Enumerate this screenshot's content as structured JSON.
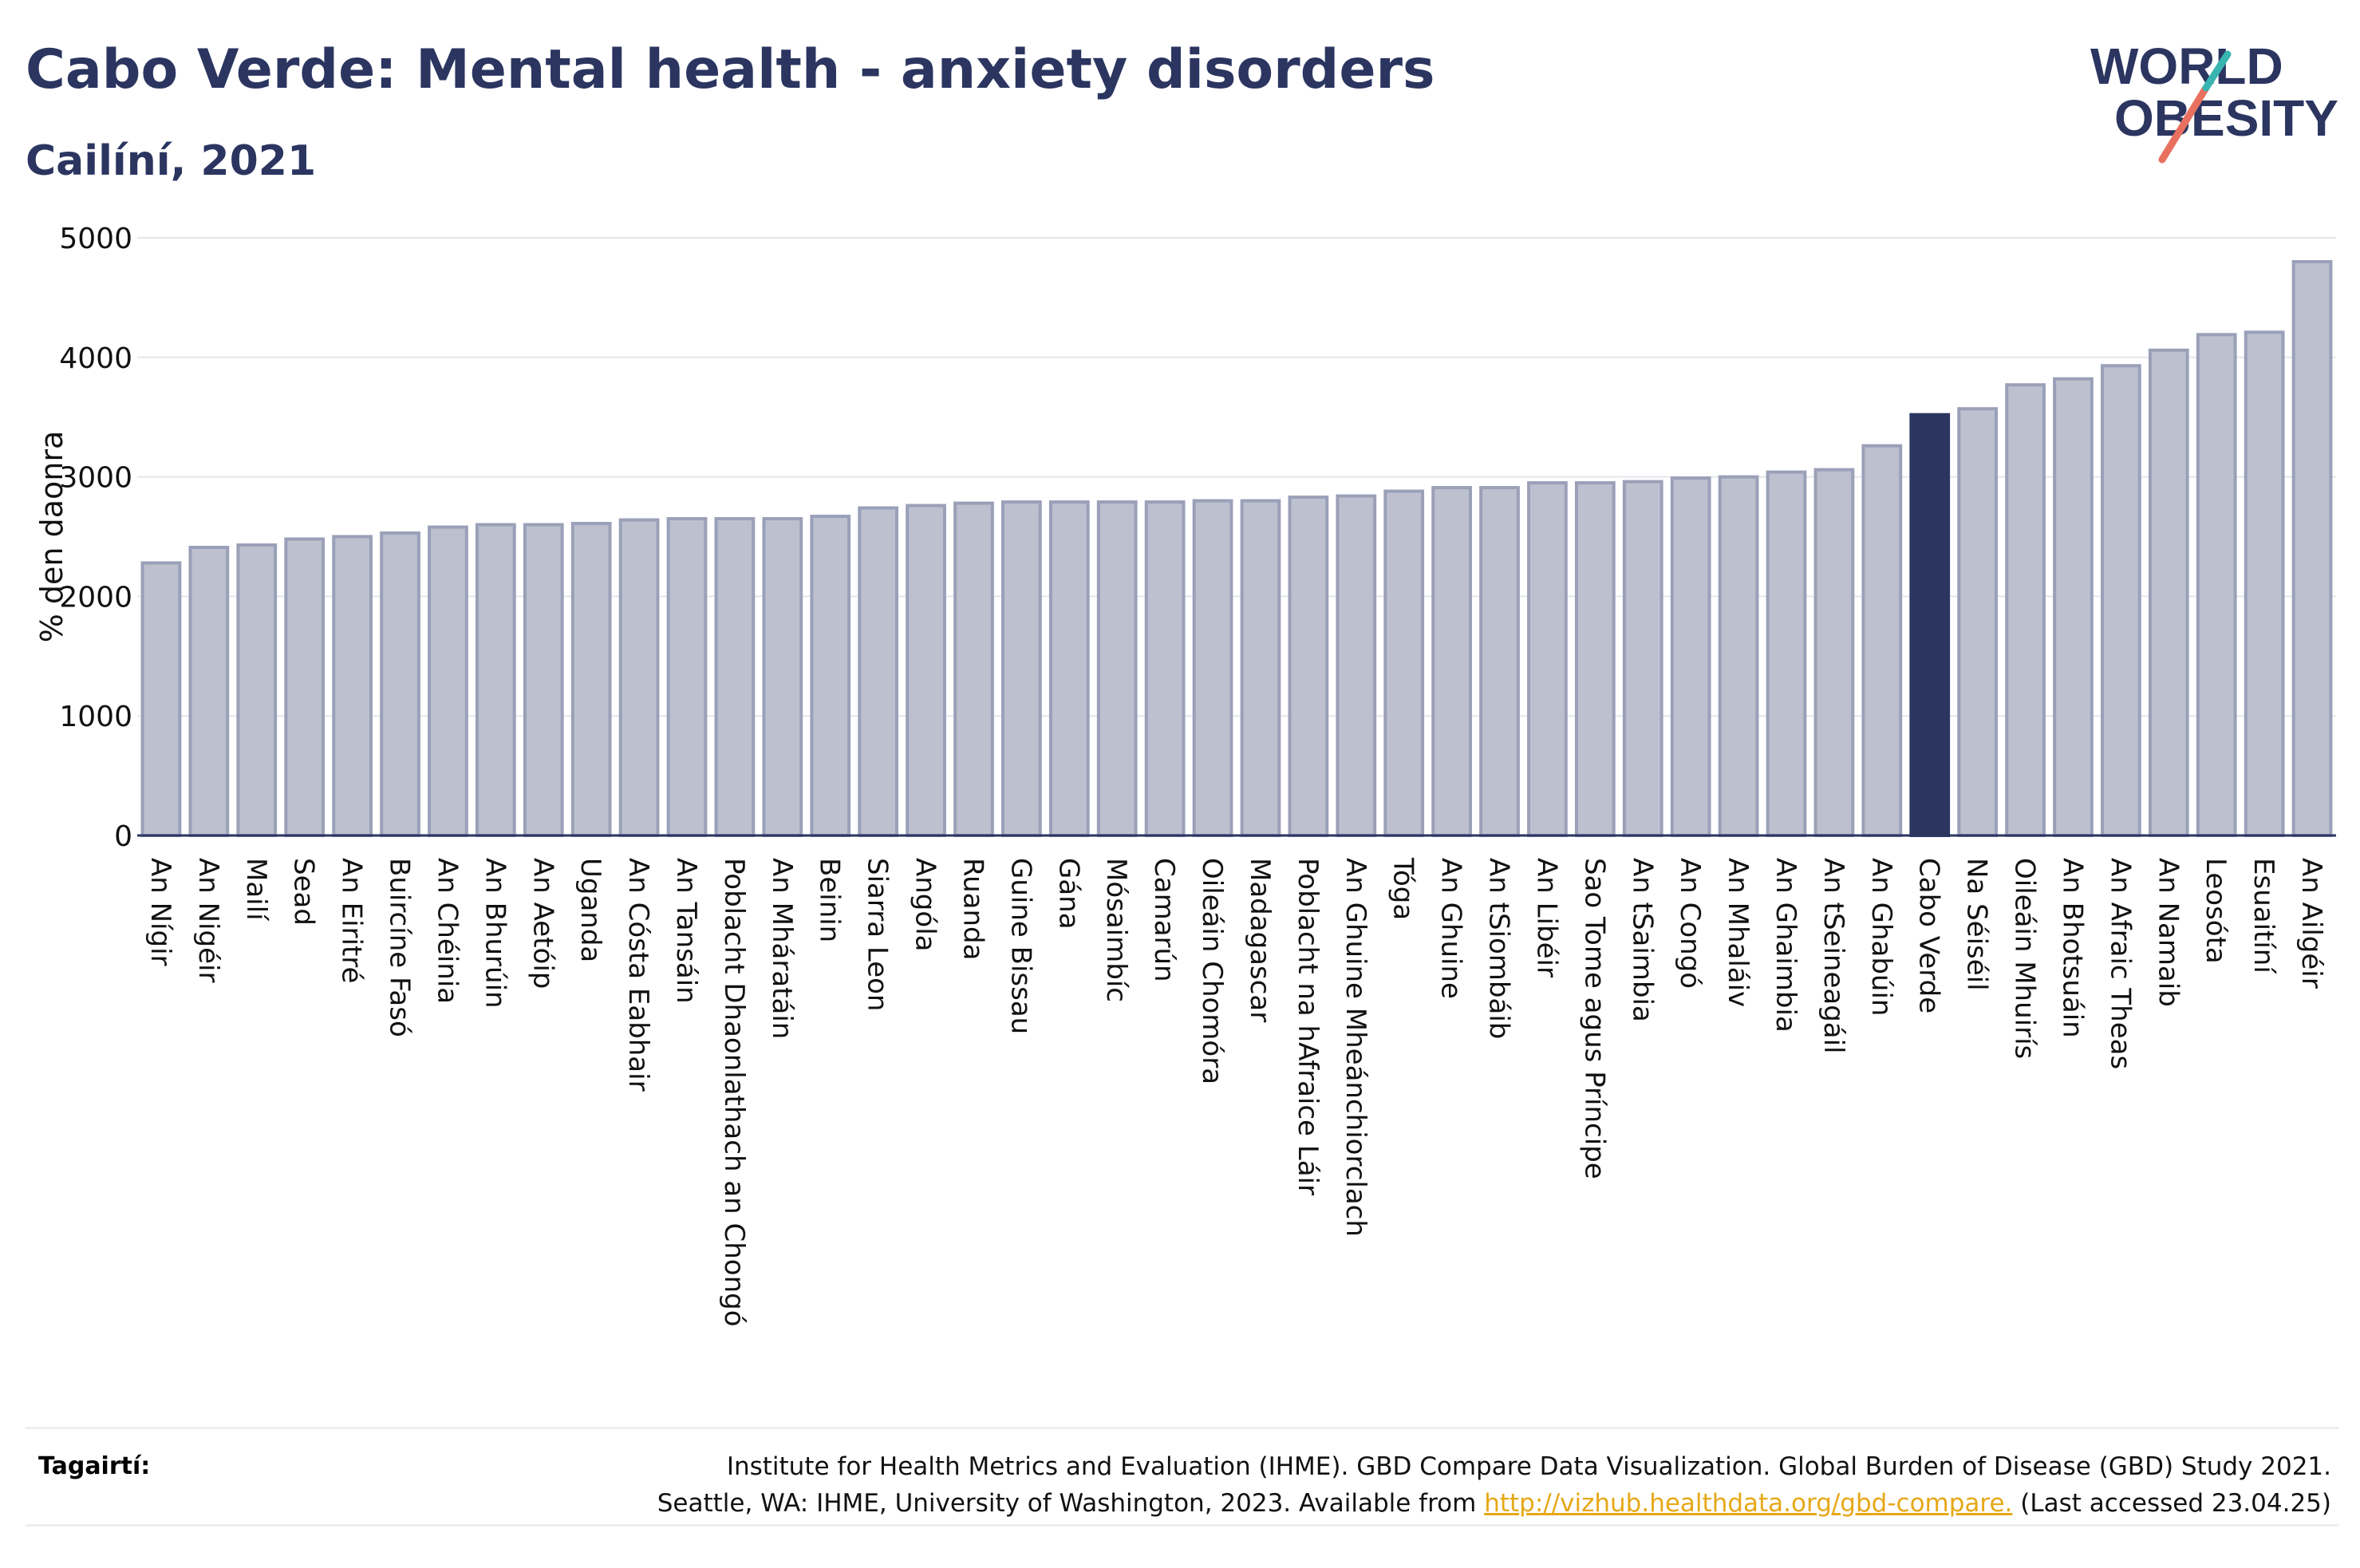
{
  "title": "Cabo Verde: Mental health - anxiety disorders",
  "subtitle": "Cailíní, 2021",
  "logo": {
    "line1": "WORLD",
    "line2": "OBESITY"
  },
  "colors": {
    "bar": "#bcc0cf",
    "bar_stroke": "#9aa0b8",
    "highlight": "#2b3560",
    "grid": "#e4e6ec",
    "text": "#2b3560",
    "link": "#e6a817"
  },
  "chart_data": {
    "type": "bar",
    "ylabel": "% den daonra",
    "ylim": [
      0,
      5000
    ],
    "yticks": [
      0,
      1000,
      2000,
      3000,
      4000,
      5000
    ],
    "highlight": "Cabo Verde",
    "categories": [
      "An Nígir",
      "An Nigéir",
      "Mailí",
      "Sead",
      "An Eiritré",
      "Buircíne Fasó",
      "An Chéinia",
      "An Bhurúin",
      "An Aetóip",
      "Uganda",
      "An Cósta Eabhair",
      "An Tansáin",
      "Poblacht Dhaonlathach an Chongó",
      "An Mháratáin",
      "Beinin",
      "Siarra Leon",
      "Angóla",
      "Ruanda",
      "Guine Bissau",
      "Gána",
      "Mósaimbíc",
      "Camarún",
      "Oileáin Chomóra",
      "Madagascar",
      "Poblacht na hAfraice Láir",
      "An Ghuine Mheánchiorclach",
      "Tóga",
      "An Ghuine",
      "An tSiombáib",
      "An Libéir",
      "Sao Tome agus Príncipe",
      "An tSaimbia",
      "An Congó",
      "An Mhaláiv",
      "An Ghaimbia",
      "An tSeineagáil",
      "An Ghabúin",
      "Cabo Verde",
      "Na Séiséil",
      "Oileáin Mhuirís",
      "An Bhotsuáin",
      "An Afraic Theas",
      "An Namaib",
      "Leosóta",
      "Esuaitíní",
      "An Ailgéir"
    ],
    "values": [
      2280,
      2410,
      2430,
      2480,
      2500,
      2530,
      2580,
      2600,
      2600,
      2610,
      2640,
      2650,
      2650,
      2650,
      2670,
      2740,
      2760,
      2780,
      2790,
      2790,
      2790,
      2790,
      2800,
      2800,
      2830,
      2840,
      2880,
      2910,
      2910,
      2950,
      2950,
      2960,
      2990,
      3000,
      3040,
      3060,
      3260,
      3520,
      3570,
      3770,
      3820,
      3930,
      4060,
      4190,
      4210,
      4800
    ]
  },
  "references": {
    "label": "Tagairtí:",
    "line1": "Institute for Health Metrics and Evaluation (IHME). GBD Compare Data Visualization. Global Burden of Disease (GBD) Study 2021.",
    "line2_pre": "Seattle, WA: IHME, University of Washington, 2023. Available from ",
    "link": "http://vizhub.healthdata.org/gbd-compare.",
    "line2_post": " (Last accessed 23.04.25)"
  }
}
